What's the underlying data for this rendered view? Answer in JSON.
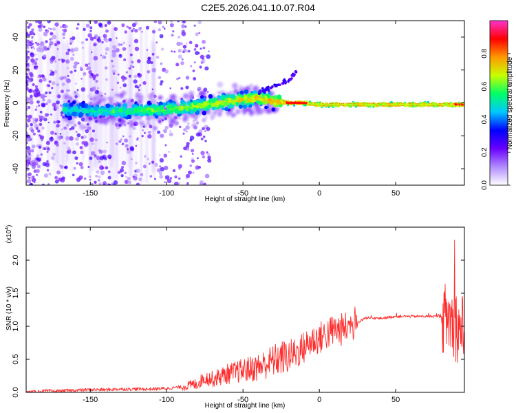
{
  "page_title": "C2E5.2026.041.10.07.R04",
  "chart_data": [
    {
      "type": "heatmap",
      "xlabel": "Height of straight line (km)",
      "ylabel": "Frequency (Hz)",
      "xlim": [
        -192,
        95
      ],
      "ylim": [
        -50,
        50
      ],
      "xticks": [
        -150,
        -100,
        -50,
        0,
        50
      ],
      "yticks": [
        -40,
        -20,
        0,
        20,
        40
      ],
      "colorbar": {
        "label": "Normalized spectral amplitude",
        "range": [
          0.0,
          1.0
        ],
        "ticks": [
          0.0,
          0.2,
          0.4,
          0.6,
          0.8
        ],
        "tick_labels": [
          "0.0",
          "0.2",
          "0.4",
          "0.6",
          "0.8"
        ],
        "colors": [
          "#ffffff",
          "#b18cff",
          "#6a00ff",
          "#0000ff",
          "#00c8ff",
          "#00ff66",
          "#c8ff00",
          "#ff9900",
          "#ff0000",
          "#ff33cc"
        ]
      },
      "ridge": {
        "x": [
          -167,
          -150,
          -125,
          -100,
          -80,
          -60,
          -40,
          -30,
          -20,
          -10,
          0,
          20,
          50,
          85,
          95
        ],
        "y": [
          -4,
          -5,
          -5,
          -4,
          -2,
          1,
          3,
          1,
          0,
          0,
          -1,
          -1,
          -1,
          -1,
          -1
        ]
      },
      "tail_feature": {
        "x": [
          -40,
          -30,
          -20,
          -15
        ],
        "y": [
          6,
          10,
          14,
          19
        ]
      }
    },
    {
      "type": "line",
      "xlabel": "Height of straight line (km)",
      "ylabel": "SNR (10 * v/v)",
      "scale_label": "(x10",
      "scale_exponent": "4",
      "xlim": [
        -192,
        95
      ],
      "ylim": [
        0,
        2.5
      ],
      "xticks": [
        -150,
        -100,
        -50,
        0,
        50
      ],
      "yticks": [
        0.0,
        0.5,
        1.0,
        1.5,
        2.0
      ],
      "ytick_labels": [
        "0.0",
        "0.5",
        "1.0",
        "1.5",
        "2.0"
      ],
      "color": "#ff2a2a",
      "series": [
        {
          "name": "SNR",
          "x": [
            -192,
            -180,
            -170,
            -160,
            -150,
            -140,
            -130,
            -120,
            -110,
            -100,
            -90,
            -80,
            -75,
            -70,
            -60,
            -50,
            -40,
            -30,
            -20,
            -15,
            -10,
            -5,
            0,
            5,
            10,
            15,
            20,
            25,
            30,
            40,
            50,
            60,
            70,
            80,
            85,
            90,
            95
          ],
          "y": [
            0.0,
            0.02,
            0.02,
            0.03,
            0.04,
            0.04,
            0.05,
            0.05,
            0.05,
            0.06,
            0.08,
            0.13,
            0.22,
            0.2,
            0.28,
            0.33,
            0.38,
            0.48,
            0.55,
            0.6,
            0.68,
            0.78,
            0.82,
            0.88,
            0.95,
            0.95,
            1.0,
            1.05,
            1.12,
            1.12,
            1.15,
            1.15,
            1.15,
            1.15,
            1.1,
            1.0,
            0.9
          ]
        }
      ]
    }
  ]
}
